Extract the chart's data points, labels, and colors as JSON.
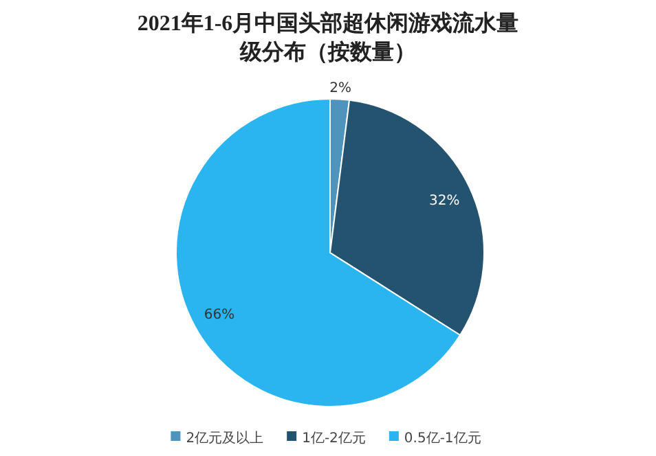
{
  "chart_data": {
    "type": "pie",
    "title": "2021年1-6月中国头部超休闲游戏流水量级分布（按数量）",
    "categories": [
      "2亿元及以上",
      "1亿-2亿元",
      "0.5亿-1亿元"
    ],
    "values": [
      2,
      32,
      66
    ],
    "colors": [
      "#4f94bd",
      "#24536f",
      "#2bb5f0"
    ],
    "value_labels": [
      "2%",
      "32%",
      "66%"
    ],
    "legend": "bottom"
  }
}
